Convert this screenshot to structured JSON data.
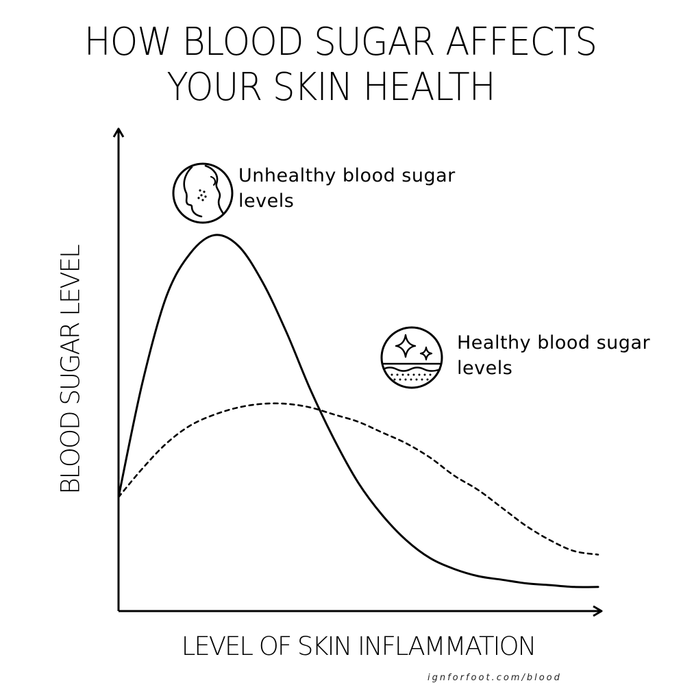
{
  "page": {
    "title_line1": "HOW BLOOD SUGAR AFFECTS",
    "title_line2": "YOUR SKIN HEALTH",
    "footer": "ignforfoot.com/blood"
  },
  "chart_data": {
    "type": "line",
    "title": "HOW BLOOD SUGAR AFFECTS YOUR SKIN HEALTH",
    "xlabel": "LEVEL OF SKIN INFLAMMATION",
    "ylabel": "BLOOD SUGAR LEVEL",
    "grid": false,
    "legend": "none",
    "axis_ticks": false,
    "xlim": [
      0,
      100
    ],
    "ylim": [
      0,
      100
    ],
    "x": [
      0,
      5,
      10,
      15,
      20,
      25,
      30,
      35,
      40,
      45,
      50,
      55,
      60,
      65,
      70,
      75,
      80,
      85,
      90,
      95,
      100
    ],
    "series": [
      {
        "name": "Unhealthy blood sugar levels",
        "style": "solid",
        "values": [
          26,
          58,
          82,
          94,
          99,
          96,
          86,
          72,
          56,
          42,
          30,
          21,
          14,
          9,
          6,
          4,
          3,
          2,
          1.5,
          1,
          1
        ]
      },
      {
        "name": "Healthy blood sugar levels",
        "style": "dashed",
        "values": [
          26,
          34,
          41,
          46,
          49,
          51,
          52,
          52,
          51,
          49,
          47,
          44,
          41,
          37,
          32,
          28,
          23,
          18,
          14,
          11,
          10
        ]
      }
    ],
    "annotations": [
      {
        "text_line1": "Unhealthy blood sugar",
        "text_line2": "levels",
        "icon": "face-acne-icon"
      },
      {
        "text_line1": "Healthy blood sugar",
        "text_line2": "levels",
        "icon": "sparkle-skin-icon"
      }
    ],
    "colors": {
      "line": "#000000",
      "background": "#ffffff"
    }
  }
}
